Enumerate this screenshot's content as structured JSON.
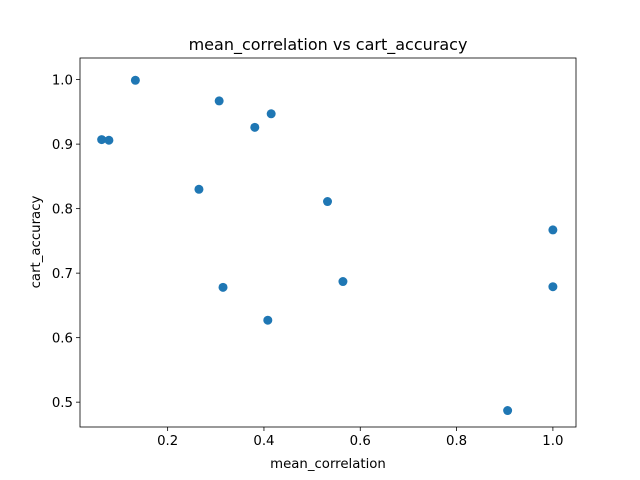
{
  "chart_data": {
    "type": "scatter",
    "title": "mean_correlation vs cart_accuracy",
    "xlabel": "mean_correlation",
    "ylabel": "cart_accuracy",
    "xlim": [
      0.018,
      1.048
    ],
    "ylim": [
      0.4615,
      1.0335
    ],
    "x_ticks": [
      0.2,
      0.4,
      0.6,
      0.8,
      1.0
    ],
    "x_tick_labels": [
      "0.2",
      "0.4",
      "0.6",
      "0.8",
      "1.0"
    ],
    "y_ticks": [
      0.5,
      0.6,
      0.7,
      0.8,
      0.9,
      1.0
    ],
    "y_tick_labels": [
      "0.5",
      "0.6",
      "0.7",
      "0.8",
      "0.9",
      "1.0"
    ],
    "grid": false,
    "legend": "none",
    "series": [
      {
        "color": "#1f77b4",
        "points": [
          {
            "x": 0.133,
            "y": 0.999
          },
          {
            "x": 0.307,
            "y": 0.967
          },
          {
            "x": 0.415,
            "y": 0.947
          },
          {
            "x": 0.381,
            "y": 0.926
          },
          {
            "x": 0.063,
            "y": 0.907
          },
          {
            "x": 0.078,
            "y": 0.906
          },
          {
            "x": 0.265,
            "y": 0.83
          },
          {
            "x": 0.532,
            "y": 0.811
          },
          {
            "x": 1.0,
            "y": 0.767
          },
          {
            "x": 0.564,
            "y": 0.687
          },
          {
            "x": 1.0,
            "y": 0.679
          },
          {
            "x": 0.315,
            "y": 0.678
          },
          {
            "x": 0.408,
            "y": 0.627
          },
          {
            "x": 0.906,
            "y": 0.487
          }
        ]
      }
    ]
  }
}
